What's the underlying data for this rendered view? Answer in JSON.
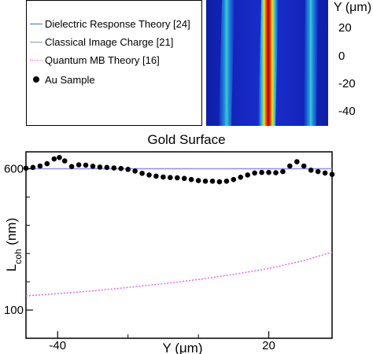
{
  "legend": {
    "items": [
      {
        "label": "Dielectric Response Theory [24]",
        "style": "solid",
        "color": "#3f6fc9"
      },
      {
        "label": "Classical Image Charge [21]",
        "style": "solid",
        "color": "#8f8fe8"
      },
      {
        "label": "Quantum MB Theory [16]",
        "style": "dotted",
        "color": "#ee66ee"
      },
      {
        "label": "Au Sample",
        "style": "marker",
        "color": "#000000"
      }
    ]
  },
  "heatmap": {
    "y_axis_label": "Y (μm)",
    "y_ticks": [
      "20",
      "0",
      "-20",
      "-40"
    ],
    "y_tick_values": [
      20,
      0,
      -20,
      -40
    ],
    "ylim": [
      -50,
      30
    ],
    "colors": {
      "background": "#1428c8",
      "side_stripe": "#3cc8d8",
      "center_stripe": "#b40000"
    }
  },
  "chart_data": {
    "type": "scatter",
    "title": "Gold Surface",
    "xlabel": "Y (μm)",
    "ylabel": "Lcoh (nm)",
    "ylabel_main": "L",
    "ylabel_sub": "coh",
    "ylabel_unit": " (nm)",
    "xlim": [
      -49,
      38
    ],
    "ylim": [
      0,
      660
    ],
    "x_tick_values": [
      -40,
      20
    ],
    "x_tick_labels": [
      "-40",
      "20"
    ],
    "y_tick_values": [
      100,
      600
    ],
    "y_tick_labels": [
      "100",
      "600"
    ],
    "series": [
      {
        "name": "Classical Image Charge [21]",
        "kind": "line",
        "color": "#8f8fe8",
        "x": [
          -49,
          38
        ],
        "y": [
          600,
          600
        ]
      },
      {
        "name": "Quantum MB Theory [16]",
        "kind": "dotted-line",
        "color": "#ee66ee",
        "x": [
          -49,
          -40,
          -30,
          -20,
          -10,
          0,
          10,
          20,
          30,
          38
        ],
        "y": [
          150,
          158,
          168,
          180,
          193,
          208,
          226,
          247,
          275,
          305
        ]
      },
      {
        "name": "Au Sample",
        "kind": "markers",
        "color": "#000000",
        "x": [
          -49,
          -47,
          -45,
          -43,
          -41,
          -39.5,
          -38,
          -36,
          -34,
          -32,
          -30,
          -28,
          -26,
          -24,
          -22,
          -20,
          -18,
          -16,
          -14,
          -12,
          -10,
          -8,
          -6,
          -4,
          -2,
          0,
          2,
          4,
          6,
          8,
          10,
          12,
          14,
          16,
          18,
          20,
          22,
          24,
          26,
          28,
          30,
          32,
          34,
          36,
          38
        ],
        "y": [
          602,
          605,
          610,
          618,
          635,
          640,
          628,
          608,
          614,
          613,
          609,
          606,
          605,
          603,
          601,
          598,
          592,
          584,
          578,
          574,
          571,
          569,
          568,
          566,
          562,
          558,
          556,
          556,
          554,
          556,
          562,
          570,
          578,
          585,
          587,
          587,
          586,
          590,
          610,
          625,
          610,
          595,
          590,
          585,
          580
        ]
      }
    ],
    "grid": false,
    "legend_placement": "above-left"
  }
}
